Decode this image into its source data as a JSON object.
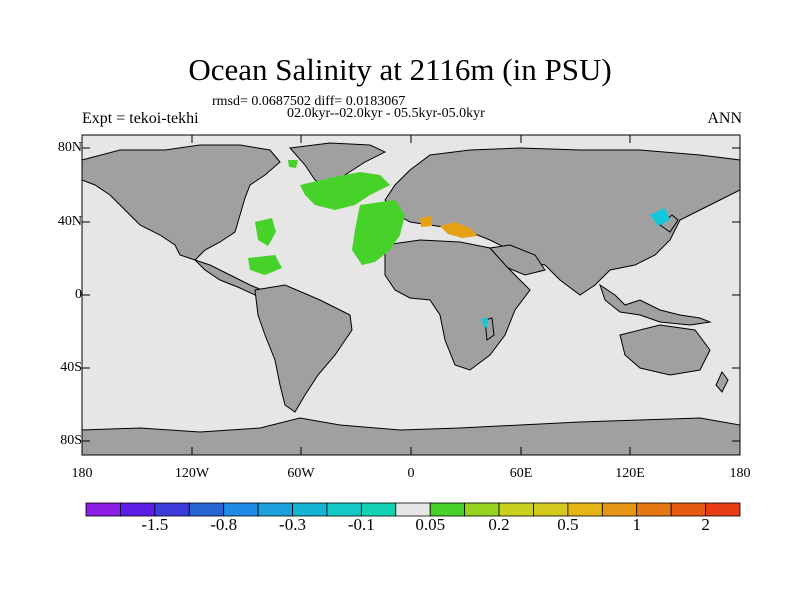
{
  "title": "Ocean Salinity at 2116m (in PSU)",
  "stats": "rmsd= 0.0687502 diff= 0.0183067",
  "periods": "02.0kyr--02.0kyr - 05.5kyr-05.0kyr",
  "left_label": "Expt = tekoi-tekhi",
  "right_label": "ANN",
  "axes": {
    "lat_ticks": [
      "80N",
      "40N",
      "0",
      "40S",
      "80S"
    ],
    "lon_ticks": [
      "180",
      "120W",
      "60W",
      "0",
      "60E",
      "120E",
      "180"
    ]
  },
  "colorbar": {
    "colors": [
      "#8c1ee6",
      "#5a1ee6",
      "#3c3cdc",
      "#2864d2",
      "#1e8ce6",
      "#1ea0dc",
      "#14b4d2",
      "#14c8c8",
      "#14d2b4",
      "#e6e6e6",
      "#46d228",
      "#96d21e",
      "#c8d21e",
      "#d2c81e",
      "#e6b414",
      "#e69614",
      "#e67814",
      "#e65a14",
      "#e63c14"
    ],
    "labels": [
      "-1.5",
      "-0.8",
      "-0.3",
      "-0.1",
      "0.05",
      "0.2",
      "0.5",
      "1",
      "2"
    ]
  },
  "colors": {
    "land": "#a0a0a0",
    "ocean_neutral": "#e6e6e6",
    "positive_anomaly": "#46d228",
    "orange_anomaly": "#e6a014",
    "cyan_anomaly": "#14c8dc"
  }
}
